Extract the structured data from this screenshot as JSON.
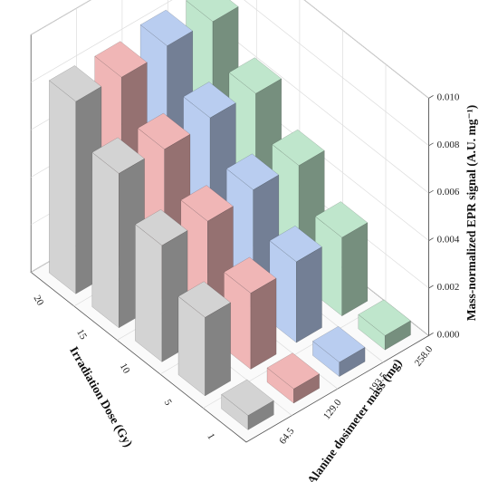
{
  "chart_data": {
    "type": "bar3d",
    "xlabel": "Irradiation Dose (Gy)",
    "ylabel": "Alanine dosimeter mass (mg)",
    "zlabel": "Mass-normalized EPR signal (A.U. mg⁻¹)",
    "dose_ticks": [
      "20",
      "15",
      "10",
      "5",
      "1"
    ],
    "mass_ticks": [
      "64.5",
      "129.0",
      "193.5",
      "258.0"
    ],
    "z_ticks": [
      "0.000",
      "0.002",
      "0.004",
      "0.006",
      "0.008",
      "0.010"
    ],
    "zlim": [
      0,
      0.01
    ],
    "series": [
      {
        "mass": "64.5",
        "color": "#d3d3d3",
        "values": [
          0.0081,
          0.0065,
          0.0049,
          0.0033,
          0.0006
        ]
      },
      {
        "mass": "129.0",
        "color": "#f0b6b6",
        "values": [
          0.008,
          0.0064,
          0.0048,
          0.0032,
          0.0006
        ]
      },
      {
        "mass": "193.5",
        "color": "#b9cdf0",
        "values": [
          0.0082,
          0.0066,
          0.005,
          0.0034,
          0.0006
        ]
      },
      {
        "mass": "258.0",
        "color": "#bfe6cc",
        "values": [
          0.0081,
          0.0065,
          0.0049,
          0.0033,
          0.0006
        ]
      }
    ]
  }
}
